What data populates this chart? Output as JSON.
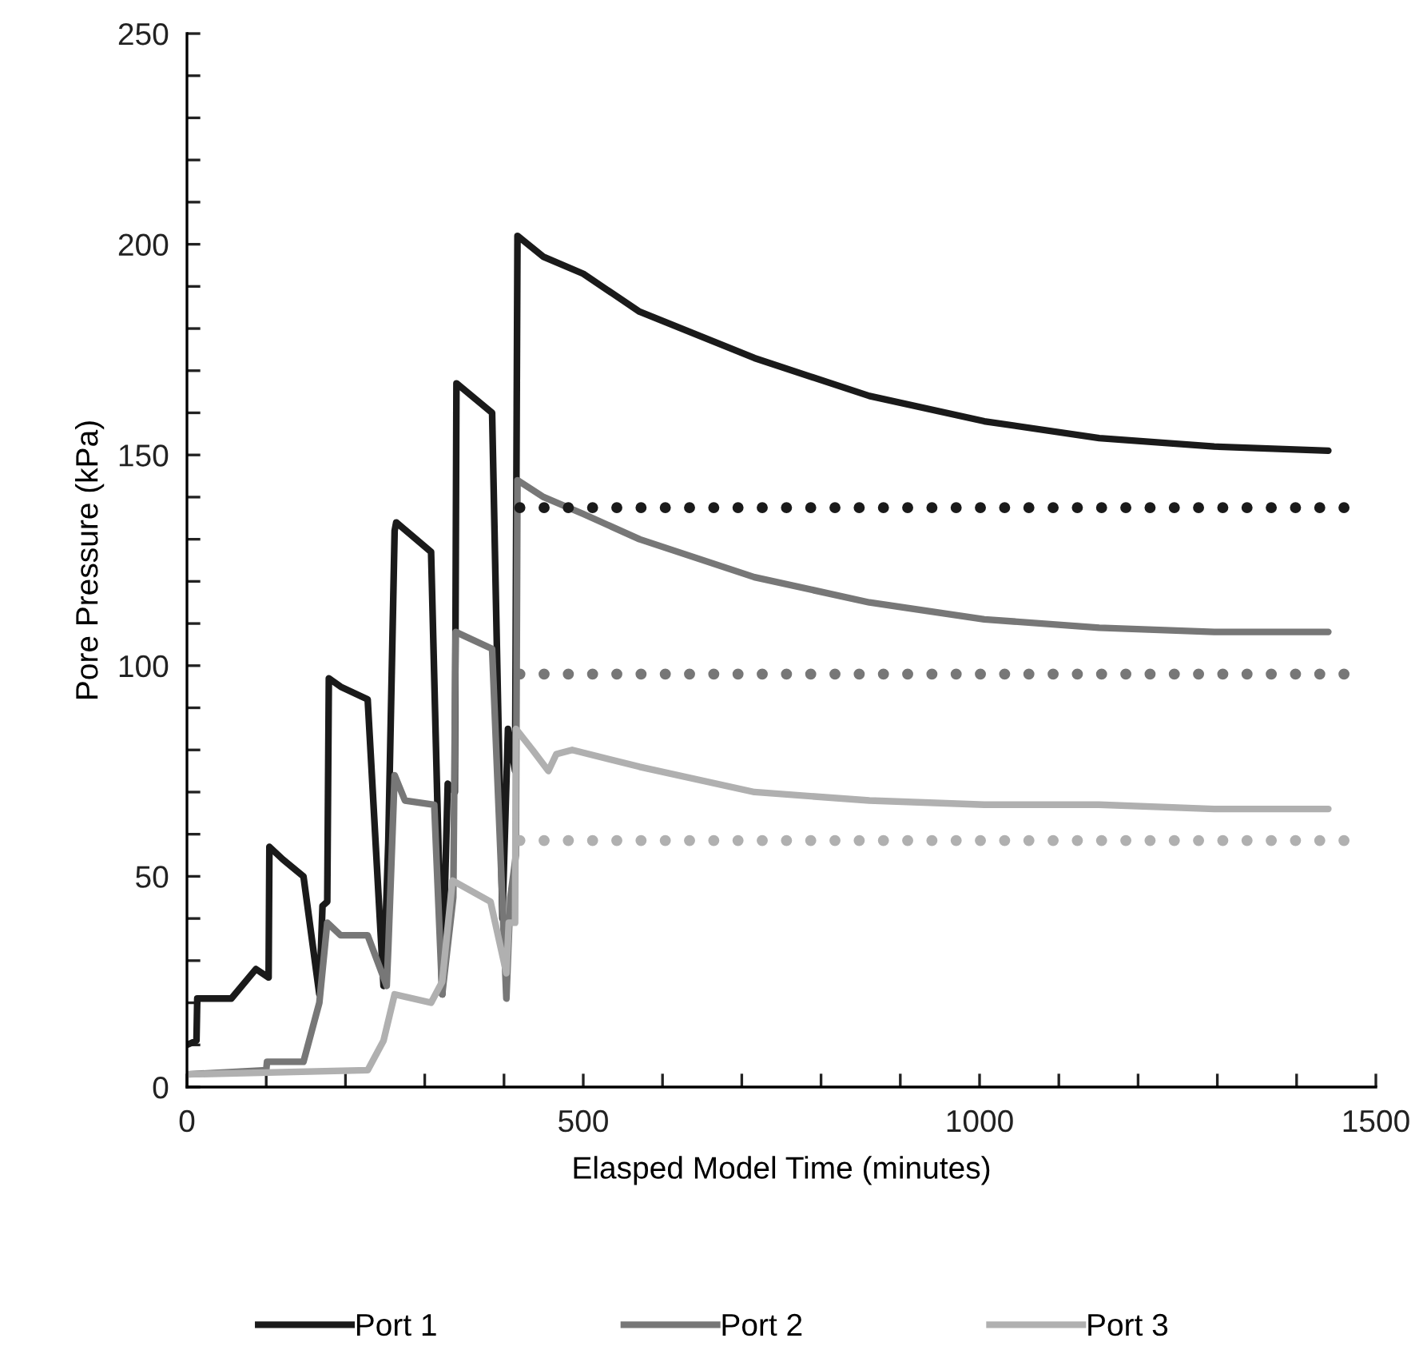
{
  "chart_data": {
    "type": "line",
    "xlabel": "Elasped Model Time (minutes)",
    "ylabel": "Pore Pressure (kPa)",
    "xlim": [
      0,
      1500
    ],
    "ylim": [
      0,
      250
    ],
    "xticks": [
      0,
      {
        "value": 100,
        "label": null
      },
      {
        "value": 200,
        "label": null
      },
      {
        "value": 300,
        "label": null
      },
      {
        "value": 400,
        "label": null
      },
      500,
      {
        "value": 600,
        "label": null
      },
      {
        "value": 700,
        "label": null
      },
      {
        "value": 800,
        "label": null
      },
      {
        "value": 900,
        "label": null
      },
      1000,
      {
        "value": 1100,
        "label": null
      },
      {
        "value": 1200,
        "label": null
      },
      {
        "value": 1300,
        "label": null
      },
      {
        "value": 1400,
        "label": null
      },
      1500
    ],
    "yticks": [
      0,
      {
        "value": 10,
        "label": null
      },
      {
        "value": 20,
        "label": null
      },
      {
        "value": 30,
        "label": null
      },
      {
        "value": 40,
        "label": null
      },
      50,
      {
        "value": 60,
        "label": null
      },
      {
        "value": 70,
        "label": null
      },
      {
        "value": 80,
        "label": null
      },
      {
        "value": 90,
        "label": null
      },
      100,
      {
        "value": 110,
        "label": null
      },
      {
        "value": 120,
        "label": null
      },
      {
        "value": 130,
        "label": null
      },
      {
        "value": 140,
        "label": null
      },
      150,
      {
        "value": 160,
        "label": null
      },
      {
        "value": 170,
        "label": null
      },
      {
        "value": 180,
        "label": null
      },
      {
        "value": 190,
        "label": null
      },
      200,
      {
        "value": 210,
        "label": null
      },
      {
        "value": 220,
        "label": null
      },
      {
        "value": 230,
        "label": null
      },
      {
        "value": 240,
        "label": null
      },
      250
    ],
    "grid": false,
    "legend": "bottom",
    "marker": "none",
    "series": [
      {
        "name": "Port 1",
        "color": "#1a1a1a",
        "x": [
          0,
          12,
          13,
          56,
          87,
          103,
          104,
          121,
          147,
          167,
          171,
          177,
          179,
          194,
          228,
          248,
          254,
          262,
          264,
          308,
          322,
          329,
          338,
          340,
          385,
          398,
          405,
          414,
          417,
          450,
          500,
          571,
          716,
          861,
          1006,
          1151,
          1296,
          1440
        ],
        "values": [
          10,
          11,
          21,
          21,
          28,
          26,
          57,
          54,
          50,
          22,
          43,
          44,
          97,
          95,
          92,
          24,
          58,
          132,
          134,
          127,
          22,
          72,
          70,
          167,
          160,
          40,
          85,
          75,
          202,
          197,
          193,
          184,
          173,
          164,
          158,
          154,
          152,
          151
        ]
      },
      {
        "name": "Port 2",
        "color": "#777777",
        "x": [
          0,
          100,
          101,
          147,
          167,
          177,
          194,
          228,
          252,
          254,
          262,
          275,
          312,
          322,
          336,
          339,
          385,
          403,
          408,
          415,
          417,
          450,
          500,
          571,
          716,
          861,
          1006,
          1151,
          1296,
          1440
        ],
        "values": [
          3,
          4,
          6,
          6,
          20,
          39,
          36,
          36,
          24,
          33,
          74,
          68,
          67,
          22,
          45,
          108,
          104,
          21,
          45,
          55,
          144,
          140,
          136,
          130,
          121,
          115,
          111,
          109,
          108,
          108
        ]
      },
      {
        "name": "Port 3",
        "color": "#b0b0b0",
        "x": [
          0,
          228,
          248,
          262,
          308,
          322,
          335,
          383,
          403,
          406,
          414,
          415,
          436,
          456,
          466,
          486,
          571,
          716,
          861,
          1006,
          1151,
          1296,
          1440
        ],
        "values": [
          3,
          4,
          11,
          22,
          20,
          25,
          49,
          44,
          27,
          39,
          39,
          85,
          80,
          75,
          79,
          80,
          76,
          70,
          68,
          67,
          67,
          66,
          66
        ]
      },
      {
        "color": "#1a1a1a",
        "line_style": "dotted",
        "x": [
          420,
          1465
        ],
        "values": [
          137.5,
          137.5
        ]
      },
      {
        "color": "#777777",
        "line_style": "dotted",
        "x": [
          420,
          1465
        ],
        "values": [
          98,
          98
        ]
      },
      {
        "color": "#b0b0b0",
        "line_style": "dotted",
        "x": [
          420,
          1465
        ],
        "values": [
          58.5,
          58.5
        ]
      }
    ]
  }
}
